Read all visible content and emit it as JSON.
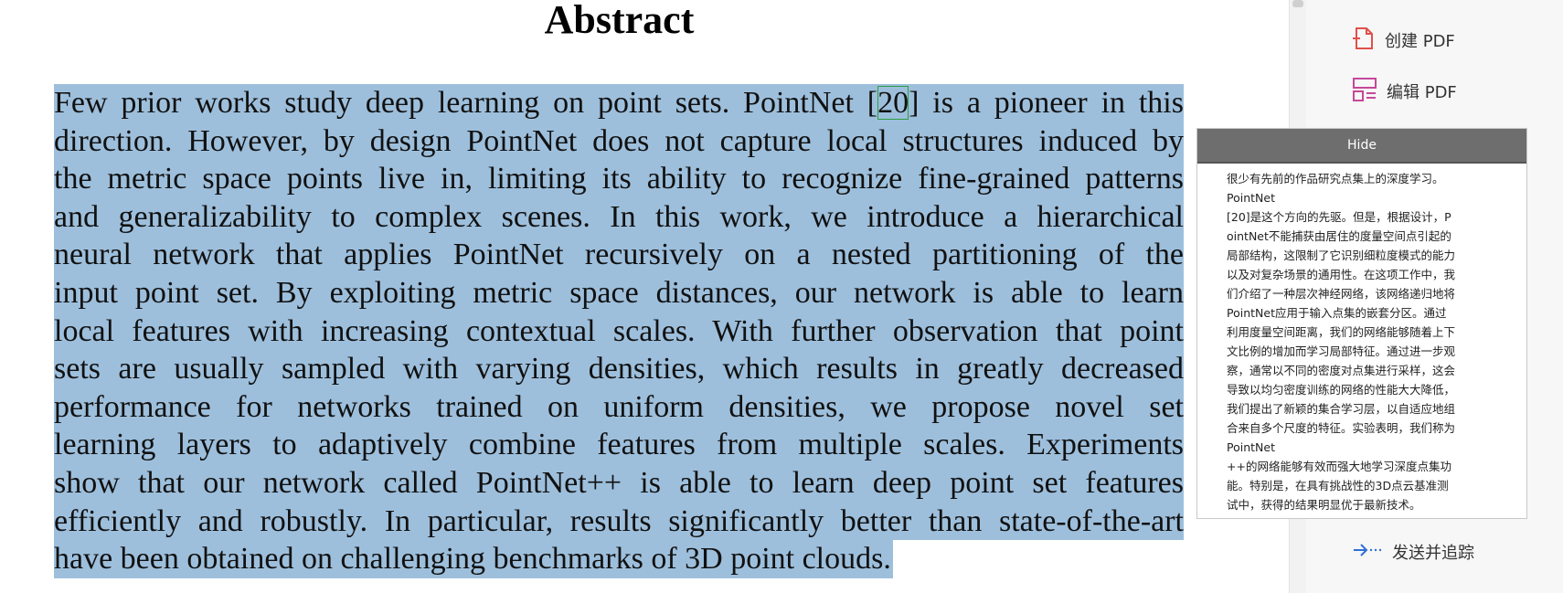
{
  "document": {
    "heading": "Abstract",
    "lines": [
      "Few prior works study deep learning on point sets. PointNet [",
      "direction. However, by design PointNet does not capture local structures induced by",
      "the metric space points live in, limiting its ability to recognize fine-grained patterns",
      "and generalizability to complex scenes. In this work, we introduce a hierarchical",
      "neural network that applies PointNet recursively on a nested partitioning of the",
      "input point set. By exploiting metric space distances, our network is able to learn",
      "local features with increasing contextual scales. With further observation that point",
      "sets are usually sampled with varying densities, which results in greatly decreased",
      "performance for networks trained on uniform densities, we propose novel set",
      "learning layers to adaptively combine features from multiple scales. Experiments",
      "show that our network called PointNet++ is able to learn deep point set features",
      "efficiently and robustly. In particular, results significantly better than state-of-the-art",
      "have been obtained on challenging benchmarks of 3D point clouds."
    ],
    "citation": "20",
    "line1_tail": "] is a pioneer in this"
  },
  "tools": {
    "create_pdf": "创建 PDF",
    "edit_pdf": "编辑 PDF",
    "send_track": "发送并追踪"
  },
  "popup": {
    "header": "Hide",
    "lines": [
      "很少有先前的作品研究点集上的深度学习。",
      "PointNet",
      "[20]是这个方向的先驱。但是，根据设计，P",
      "ointNet不能捕获由居住的度量空间点引起的",
      "局部结构，这限制了它识别细粒度模式的能力",
      "以及对复杂场景的通用性。在这项工作中，我",
      "们介绍了一种层次神经网络，该网络递归地将",
      "PointNet应用于输入点集的嵌套分区。通过",
      "利用度量空间距离，我们的网络能够随着上下",
      "文比例的增加而学习局部特征。通过进一步观",
      "察，通常以不同的密度对点集进行采样，这会",
      "导致以均匀密度训练的网络的性能大大降低，",
      "我们提出了新颖的集合学习层，以自适应地组",
      "合来自多个尺度的特征。实验表明，我们称为",
      "PointNet",
      "++的网络能够有效而强大地学习深度点集功",
      "能。特别是，在具有挑战性的3D点云基准测",
      "试中，获得的结果明显优于最新技术。"
    ]
  },
  "colors": {
    "selection": "#9dbfdc",
    "citation_box": "#2e9e3e",
    "popup_header": "#6e6e6e"
  }
}
